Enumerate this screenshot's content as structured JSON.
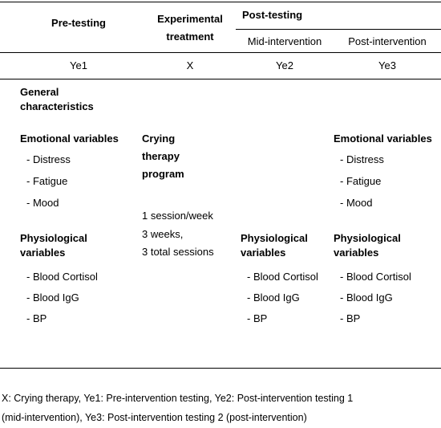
{
  "header": {
    "col1": "Pre-testing",
    "col2_line1": "Experimental",
    "col2_line2": "treatment",
    "col3": "Post-testing",
    "col3a": "Mid-intervention",
    "col3b": "Post-intervention"
  },
  "codes": {
    "col1": "Ye1",
    "col2": "X",
    "col3a": "Ye2",
    "col3b": "Ye3"
  },
  "general": {
    "line1": "General",
    "line2": "characteristics"
  },
  "emotional": {
    "title": "Emotional variables",
    "items": [
      "- Distress",
      "- Fatigue",
      "- Mood"
    ]
  },
  "program": {
    "line1": "Crying",
    "line2": "therapy",
    "line3": "program",
    "detail1": "1 session/week",
    "detail2": "3 weeks,",
    "detail3": "3 total sessions"
  },
  "physiological": {
    "title_line1": "Physiological",
    "title_line2": "variables",
    "items": [
      "- Blood Cortisol",
      "- Blood IgG",
      "- BP"
    ]
  },
  "footnote": {
    "line1": "X: Crying therapy, Ye1: Pre-intervention testing, Ye2: Post-intervention testing 1",
    "line2": "(mid-intervention), Ye3: Post-intervention testing 2 (post-intervention)"
  }
}
